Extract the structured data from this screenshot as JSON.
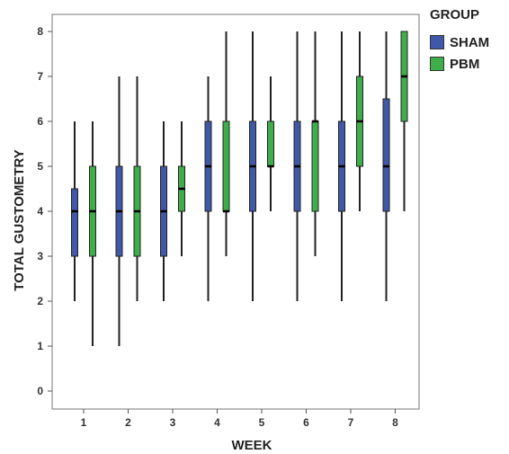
{
  "chart_data": {
    "type": "boxplot",
    "xlabel": "WEEK",
    "ylabel": "TOTAL GUSTOMETRY",
    "categories": [
      "1",
      "2",
      "3",
      "4",
      "5",
      "6",
      "7",
      "8"
    ],
    "ylim": [
      -0.4,
      8.4
    ],
    "yticks": [
      0,
      1,
      2,
      3,
      4,
      5,
      6,
      7,
      8
    ],
    "grid": false,
    "legend_position": "top-right-outside",
    "legend_title": "GROUP",
    "series": [
      {
        "name": "SHAM",
        "color": "#3f58a8",
        "boxes": [
          {
            "min": 2,
            "q1": 3,
            "median": 4,
            "q3": 4.5,
            "max": 6
          },
          {
            "min": 1,
            "q1": 3,
            "median": 4,
            "q3": 5,
            "max": 7
          },
          {
            "min": 2,
            "q1": 3,
            "median": 4,
            "q3": 5,
            "max": 6
          },
          {
            "min": 2,
            "q1": 4,
            "median": 5,
            "q3": 6,
            "max": 7
          },
          {
            "min": 2,
            "q1": 4,
            "median": 5,
            "q3": 6,
            "max": 8
          },
          {
            "min": 2,
            "q1": 4,
            "median": 5,
            "q3": 6,
            "max": 8
          },
          {
            "min": 2,
            "q1": 4,
            "median": 5,
            "q3": 6,
            "max": 8
          },
          {
            "min": 2,
            "q1": 4,
            "median": 5,
            "q3": 6.5,
            "max": 8
          }
        ]
      },
      {
        "name": "PBM",
        "color": "#3fae4a",
        "boxes": [
          {
            "min": 1,
            "q1": 3,
            "median": 4,
            "q3": 5,
            "max": 6
          },
          {
            "min": 2,
            "q1": 3,
            "median": 4,
            "q3": 5,
            "max": 7
          },
          {
            "min": 3,
            "q1": 4,
            "median": 4.5,
            "q3": 5,
            "max": 6
          },
          {
            "min": 3,
            "q1": 4,
            "median": 4,
            "q3": 6,
            "max": 8
          },
          {
            "min": 4,
            "q1": 5,
            "median": 5,
            "q3": 6,
            "max": 7
          },
          {
            "min": 3,
            "q1": 4,
            "median": 6,
            "q3": 6,
            "max": 8
          },
          {
            "min": 4,
            "q1": 5,
            "median": 6,
            "q3": 7,
            "max": 8
          },
          {
            "min": 4,
            "q1": 6,
            "median": 7,
            "q3": 8,
            "max": 8
          }
        ]
      }
    ]
  }
}
